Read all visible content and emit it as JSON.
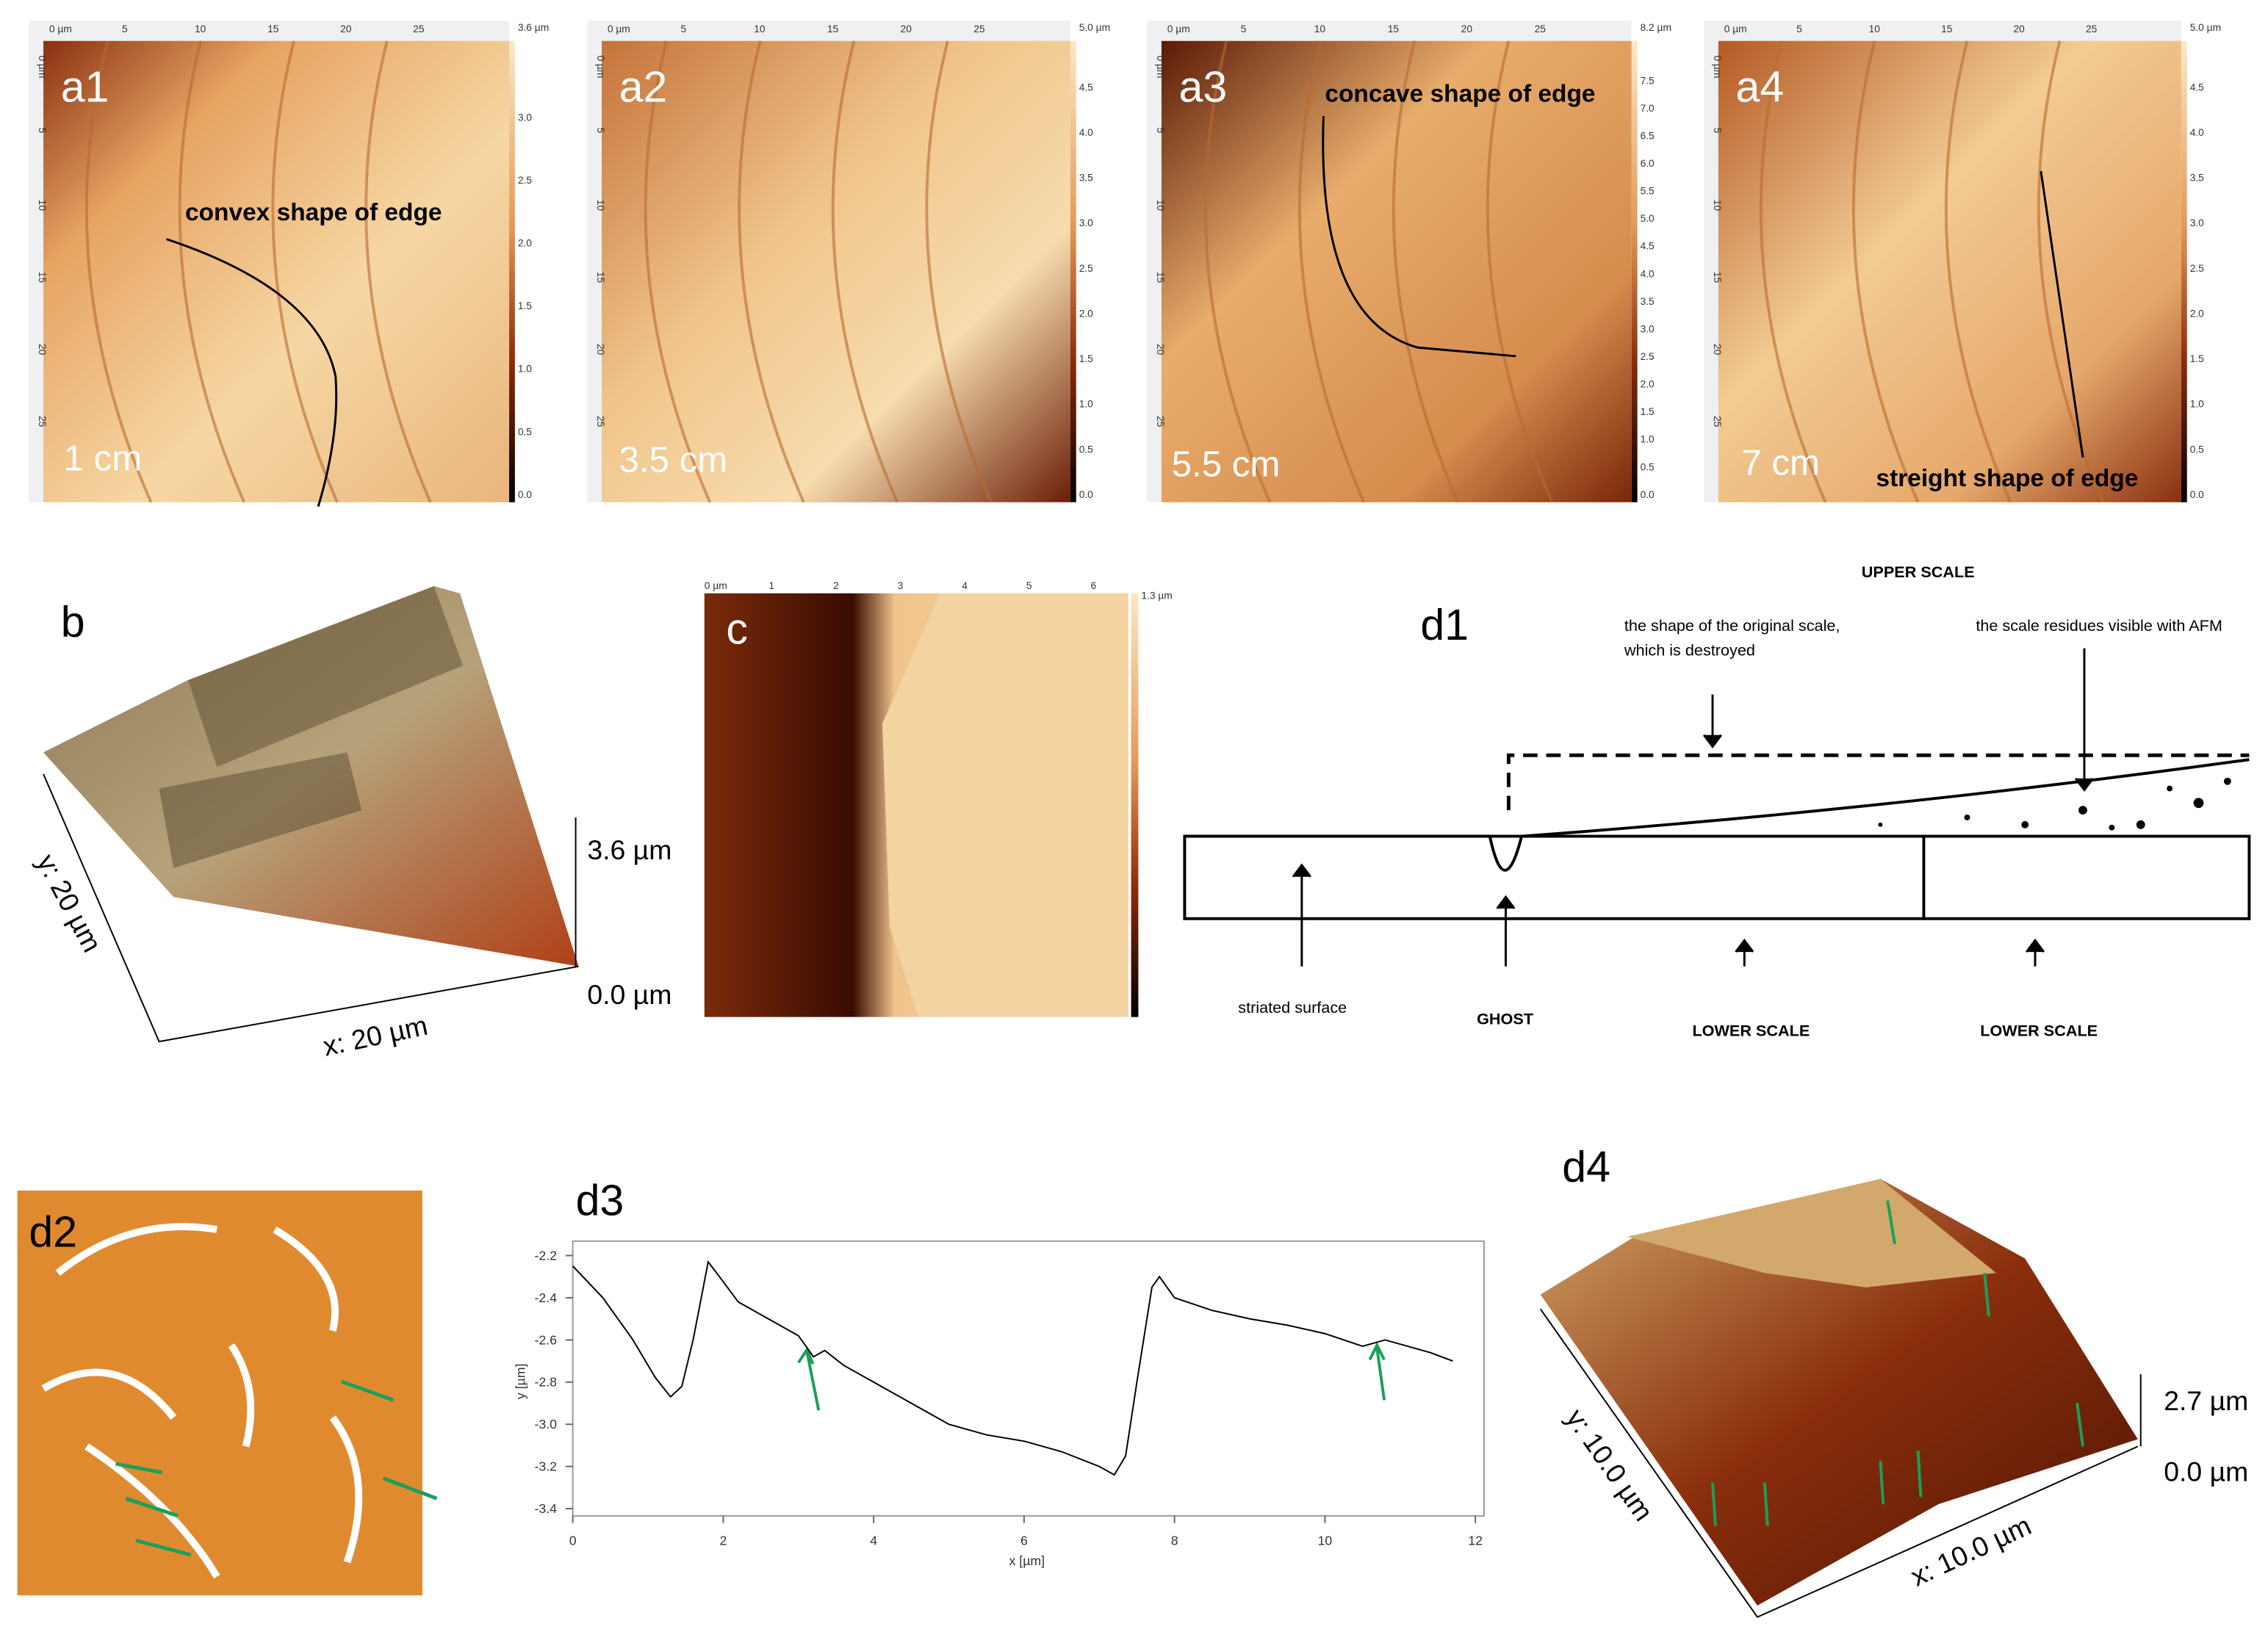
{
  "panels": {
    "ruler": [
      "0 µm",
      "5",
      "10",
      "15",
      "20",
      "25"
    ],
    "a1": {
      "label": "a1",
      "distance": "1 cm",
      "annotation": "convex shape of edge",
      "scale_max": "3.6 µm",
      "scale_ticks": [
        "3.0",
        "2.5",
        "2.0",
        "1.5",
        "1.0",
        "0.5",
        "0.0"
      ]
    },
    "a2": {
      "label": "a2",
      "distance": "3.5 cm",
      "scale_max": "5.0 µm",
      "scale_ticks": [
        "4.5",
        "4.0",
        "3.5",
        "3.0",
        "2.5",
        "2.0",
        "1.5",
        "1.0",
        "0.5",
        "0.0"
      ]
    },
    "a3": {
      "label": "a3",
      "distance": "5.5 cm",
      "annotation": "concave shape of edge",
      "scale_max": "8.2 µm",
      "scale_ticks": [
        "7.5",
        "7.0",
        "6.5",
        "6.0",
        "5.5",
        "5.0",
        "4.5",
        "4.0",
        "3.5",
        "3.0",
        "2.5",
        "2.0",
        "1.5",
        "1.0",
        "0.5",
        "0.0"
      ]
    },
    "a4": {
      "label": "a4",
      "distance": "7 cm",
      "annotation": "streight shape of edge",
      "scale_max": "5.0 µm",
      "scale_ticks": [
        "4.5",
        "4.0",
        "3.5",
        "3.0",
        "2.5",
        "2.0",
        "1.5",
        "1.0",
        "0.5",
        "0.0"
      ]
    },
    "b": {
      "label": "b",
      "z_max": "3.6 µm",
      "z_min": "0.0 µm",
      "x_axis": "x: 20 µm",
      "y_axis": "y: 20 µm"
    },
    "c": {
      "label": "c",
      "scale_max": "1.3 µm",
      "top_ticks": [
        "0 µm",
        "1",
        "2",
        "3",
        "4",
        "5",
        "6"
      ]
    },
    "d1": {
      "label": "d1",
      "title": "UPPER SCALE",
      "original_scale": [
        "the shape of the original scale,",
        "which is destroyed"
      ],
      "residues": "the scale residues visible with AFM",
      "striated": "striated surface",
      "ghost": "GHOST",
      "lower_scale_1": "LOWER SCALE",
      "lower_scale_2": "LOWER SCALE"
    },
    "d2": {
      "label": "d2"
    },
    "d4": {
      "label": "d4",
      "z_max": "2.7 µm",
      "z_min": "0.0 µm",
      "x_axis": "x: 10.0 µm",
      "y_axis": "y: 10.0 µm"
    }
  },
  "chart_data": {
    "type": "line",
    "title": "d3",
    "x_label": "x [µm]",
    "y_label": "y [µm]",
    "color": "#000000",
    "x": [
      0,
      0.4,
      0.8,
      1.1,
      1.3,
      1.45,
      1.6,
      1.8,
      1.95,
      2.2,
      2.6,
      3.0,
      3.2,
      3.35,
      3.6,
      4,
      4.5,
      5,
      5.5,
      6,
      6.5,
      7,
      7.2,
      7.35,
      7.5,
      7.7,
      7.8,
      8.0,
      8.5,
      9,
      9.5,
      10,
      10.5,
      10.8,
      11,
      11.4,
      11.7
    ],
    "y": [
      -2.25,
      -2.4,
      -2.6,
      -2.78,
      -2.87,
      -2.82,
      -2.6,
      -2.23,
      -2.3,
      -2.42,
      -2.5,
      -2.58,
      -2.68,
      -2.65,
      -2.72,
      -2.8,
      -2.9,
      -3.0,
      -3.05,
      -3.08,
      -3.13,
      -3.2,
      -3.24,
      -3.15,
      -2.8,
      -2.35,
      -2.3,
      -2.4,
      -2.46,
      -2.5,
      -2.53,
      -2.57,
      -2.63,
      -2.6,
      -2.62,
      -2.66,
      -2.7
    ],
    "xlim": [
      0,
      12
    ],
    "ylim": [
      -3.4,
      -2.2
    ],
    "xticks": [
      0,
      2,
      4,
      6,
      8,
      10,
      12
    ],
    "yticks": [
      -2.2,
      -2.4,
      -2.6,
      -2.8,
      {
        "value": -3,
        "label": "-3.0"
      },
      -3.2,
      -3.4
    ]
  }
}
